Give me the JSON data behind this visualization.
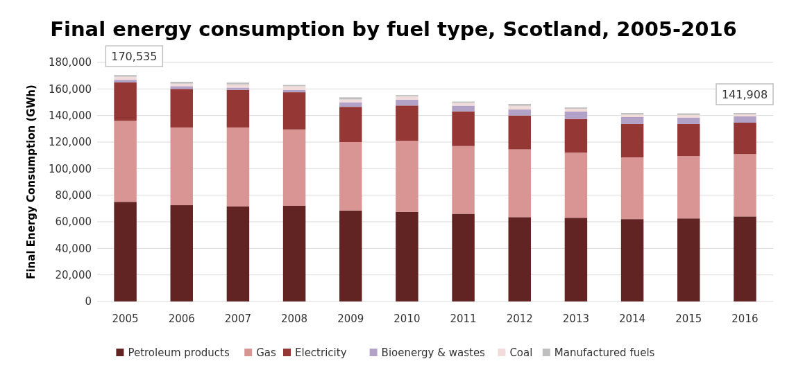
{
  "chart_data": {
    "type": "bar",
    "stacked": true,
    "title": "Final energy consumption by fuel type, Scotland, 2005-2016",
    "ylabel": "Final Energy Consumption (GWh)",
    "categories": [
      "2005",
      "2006",
      "2007",
      "2008",
      "2009",
      "2010",
      "2011",
      "2012",
      "2013",
      "2014",
      "2015",
      "2016"
    ],
    "series": [
      {
        "name": "Petroleum products",
        "color": "#622323",
        "values": [
          75000,
          72500,
          71500,
          72000,
          68500,
          67500,
          66000,
          63500,
          63000,
          62000,
          62500,
          64000
        ]
      },
      {
        "name": "Gas",
        "color": "#d99594",
        "values": [
          61000,
          58500,
          59500,
          57500,
          51500,
          53500,
          51000,
          51000,
          49000,
          46500,
          47000,
          47000
        ]
      },
      {
        "name": "Electricity",
        "color": "#953735",
        "values": [
          28900,
          29000,
          28300,
          28000,
          26500,
          26500,
          26100,
          25500,
          25400,
          25100,
          24100,
          23600
        ]
      },
      {
        "name": "Bioenergy & wastes",
        "color": "#b3a2c7",
        "values": [
          2000,
          2100,
          1700,
          1700,
          3500,
          4500,
          4300,
          4500,
          5600,
          5200,
          4900,
          4700
        ]
      },
      {
        "name": "Coal",
        "color": "#f2dcdb",
        "values": [
          2300,
          1900,
          2400,
          2800,
          2100,
          2400,
          2100,
          2800,
          2100,
          1900,
          1900,
          1600
        ]
      },
      {
        "name": "Manufactured fuels",
        "color": "#bfbfbf",
        "values": [
          1300,
          1400,
          1400,
          1000,
          1600,
          1000,
          1000,
          1400,
          1000,
          1200,
          1200,
          1000
        ]
      }
    ],
    "ylim": [
      0,
      180000
    ],
    "yticks": [
      {
        "value": 0,
        "label": "0"
      },
      {
        "value": 20000,
        "label": "20,000"
      },
      {
        "value": 40000,
        "label": "40,000"
      },
      {
        "value": 60000,
        "label": "60,000"
      },
      {
        "value": 80000,
        "label": "80,000"
      },
      {
        "value": 100000,
        "label": "100,000"
      },
      {
        "value": 120000,
        "label": "120,000"
      },
      {
        "value": 140000,
        "label": "140,000"
      },
      {
        "value": 160000,
        "label": "160,000"
      },
      {
        "value": 180000,
        "label": "180,000"
      }
    ],
    "grid": "y",
    "legend": "bottom",
    "annotations": [
      {
        "text": "170,535",
        "x": "2005",
        "y": 170535
      },
      {
        "text": "141,908",
        "x": "2016",
        "y": 141908
      }
    ]
  }
}
